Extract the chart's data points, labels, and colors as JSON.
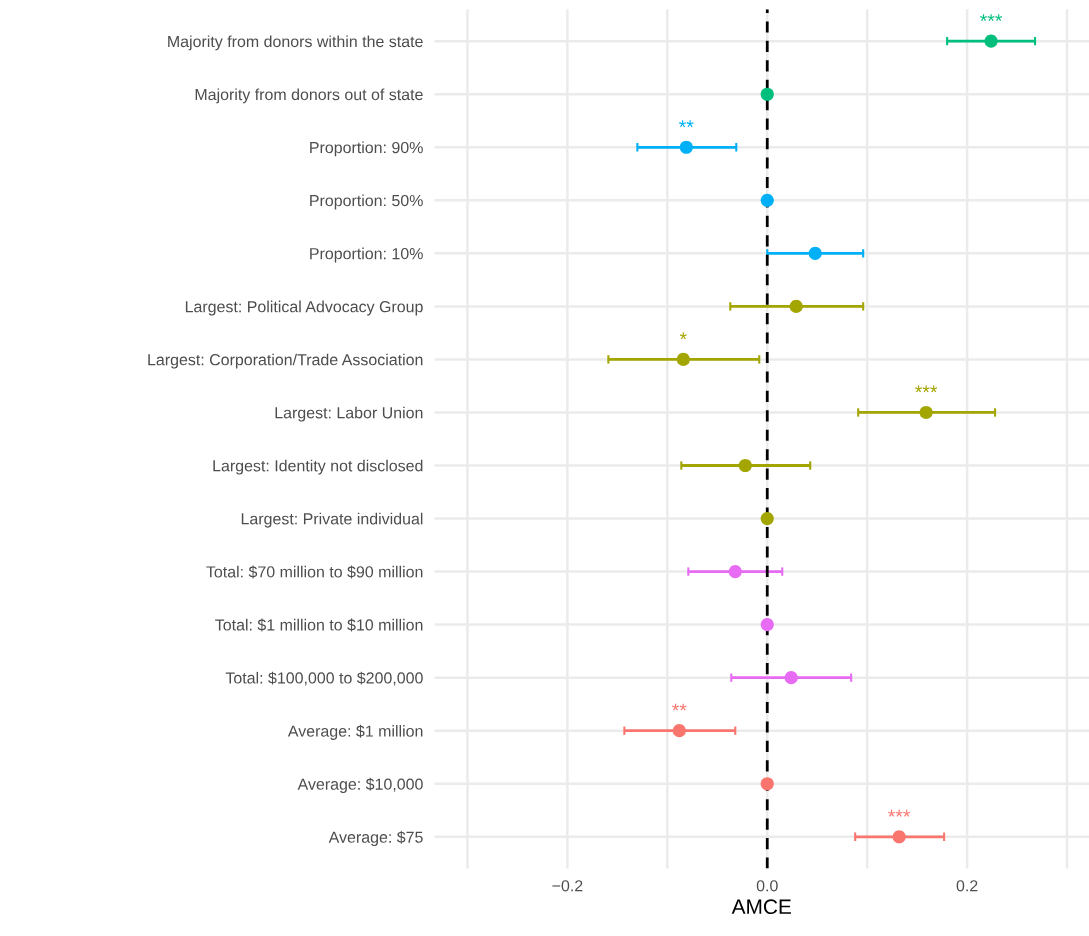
{
  "chart_data": {
    "type": "scatter",
    "orientation": "horizontal",
    "xlabel": "AMCE",
    "categories": [
      "Majority from donors within the state",
      "Majority from donors out of state",
      "Proportion: 90%",
      "Proportion: 50%",
      "Proportion: 10%",
      "Largest: Political Advocacy Group",
      "Largest: Corporation/Trade Association",
      "Largest: Labor Union",
      "Largest: Identity not disclosed",
      "Largest: Private individual",
      "Total: $70 million to $90 million",
      "Total: $1 million to $10 million",
      "Total: $100,000 to $200,000",
      "Average: $1 million",
      "Average: $10,000",
      "Average: $75"
    ],
    "series": [
      {
        "color": "#00bf7d",
        "values": [
          0.224,
          0.0,
          null,
          null,
          null,
          null,
          null,
          null,
          null,
          null,
          null,
          null,
          null,
          null,
          null,
          null
        ],
        "errors": [
          [
            0.18,
            0.268
          ],
          null,
          null,
          null,
          null,
          null,
          null,
          null,
          null,
          null,
          null,
          null,
          null,
          null,
          null,
          null
        ],
        "value_labels": [
          "***",
          null,
          null,
          null,
          null,
          null,
          null,
          null,
          null,
          null,
          null,
          null,
          null,
          null,
          null,
          null
        ]
      },
      {
        "color": "#00b0f6",
        "values": [
          null,
          null,
          -0.081,
          0.0,
          0.048,
          null,
          null,
          null,
          null,
          null,
          null,
          null,
          null,
          null,
          null,
          null
        ],
        "errors": [
          null,
          null,
          [
            -0.13,
            -0.031
          ],
          null,
          [
            0.0,
            0.096
          ],
          null,
          null,
          null,
          null,
          null,
          null,
          null,
          null,
          null,
          null,
          null
        ],
        "value_labels": [
          null,
          null,
          "**",
          null,
          null,
          null,
          null,
          null,
          null,
          null,
          null,
          null,
          null,
          null,
          null,
          null
        ]
      },
      {
        "color": "#a3a500",
        "values": [
          null,
          null,
          null,
          null,
          null,
          0.029,
          -0.084,
          0.159,
          -0.022,
          0.0,
          null,
          null,
          null,
          null,
          null,
          null
        ],
        "errors": [
          null,
          null,
          null,
          null,
          null,
          [
            -0.037,
            0.096
          ],
          [
            -0.159,
            -0.008
          ],
          [
            0.091,
            0.228
          ],
          [
            -0.086,
            0.043
          ],
          null,
          null,
          null,
          null,
          null,
          null,
          null
        ],
        "value_labels": [
          null,
          null,
          null,
          null,
          null,
          null,
          "*",
          "***",
          null,
          null,
          null,
          null,
          null,
          null,
          null,
          null
        ]
      },
      {
        "color": "#e76bf3",
        "values": [
          null,
          null,
          null,
          null,
          null,
          null,
          null,
          null,
          null,
          null,
          -0.032,
          0.0,
          0.024,
          null,
          null,
          null
        ],
        "errors": [
          null,
          null,
          null,
          null,
          null,
          null,
          null,
          null,
          null,
          null,
          [
            -0.079,
            0.015
          ],
          null,
          [
            -0.036,
            0.084
          ],
          null,
          null,
          null
        ]
      },
      {
        "color": "#f8766d",
        "values": [
          null,
          null,
          null,
          null,
          null,
          null,
          null,
          null,
          null,
          null,
          null,
          null,
          null,
          -0.088,
          0.0,
          0.132
        ],
        "errors": [
          null,
          null,
          null,
          null,
          null,
          null,
          null,
          null,
          null,
          null,
          null,
          null,
          null,
          [
            -0.143,
            -0.032
          ],
          null,
          [
            0.088,
            0.177
          ]
        ],
        "value_labels": [
          null,
          null,
          null,
          null,
          null,
          null,
          null,
          null,
          null,
          null,
          null,
          null,
          null,
          "**",
          null,
          "***"
        ]
      }
    ],
    "xlim": [
      -0.333,
      0.322
    ],
    "xticks": [
      {
        "value": -0.3,
        "label": null
      },
      {
        "value": -0.2,
        "label": "−0.2"
      },
      {
        "value": -0.1,
        "label": null
      },
      {
        "value": 0.0,
        "label": "0.0"
      },
      {
        "value": 0.1,
        "label": null
      },
      {
        "value": 0.2,
        "label": "0.2"
      },
      {
        "value": 0.3,
        "label": null
      }
    ],
    "ref_lines": [
      {
        "axis": "x",
        "value": 0.0,
        "color": "#000000",
        "line_style": "dashed"
      }
    ],
    "grid": true,
    "marker": "circle"
  }
}
